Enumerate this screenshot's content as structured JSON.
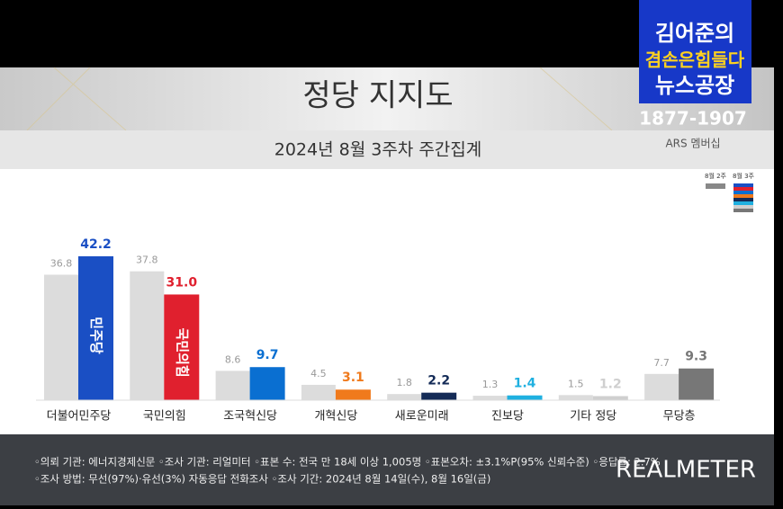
{
  "chart_data": {
    "type": "bar",
    "title": "정당 지지도",
    "subtitle": "2024년 8월 3주차 주간집계",
    "categories": [
      "더불어민주당",
      "국민의힘",
      "조국혁신당",
      "개혁신당",
      "새로운미래",
      "진보당",
      "기타 정당",
      "무당층"
    ],
    "series": [
      {
        "name": "8월 2주",
        "color": "#dcdcdc",
        "values": [
          36.8,
          37.8,
          8.6,
          4.5,
          1.8,
          1.3,
          1.5,
          7.7
        ]
      },
      {
        "name": "8월 3주",
        "colors": [
          "#1a4fc4",
          "#e0202e",
          "#0a6fd1",
          "#f07a1c",
          "#142b57",
          "#1fb0e0",
          "#cfcfcf",
          "#777777"
        ],
        "values": [
          42.2,
          31.0,
          9.7,
          3.1,
          2.2,
          1.4,
          1.2,
          9.3
        ],
        "value_labels": [
          "42.2",
          "31.0",
          "9.7",
          "3.1",
          "2.2",
          "1.4",
          "1.2",
          "9.3"
        ]
      }
    ],
    "bar_logos": [
      "민주당",
      "국민의힘"
    ]
  },
  "logo": {
    "line1": "김어준의",
    "line2": "겸손은힘들다",
    "line3": "뉴스공장",
    "phone": "1877-1907",
    "caption": "ARS 멤버십"
  },
  "footer": {
    "line1": "◦의뢰 기관: 에너지경제신문  ◦조사 기관: 리얼미터  ◦표본 수: 전국 만 18세 이상 1,005명  ◦표본오차: ±3.1%P(95% 신뢰수준)  ◦응답률: 2.7%",
    "line2": "◦조사 방법: 무선(97%)·유선(3%) 자동응답 전화조사  ◦조사 기간: 2024년 8월 14일(수), 8월 16일(금)",
    "brand": "REALMETER"
  }
}
